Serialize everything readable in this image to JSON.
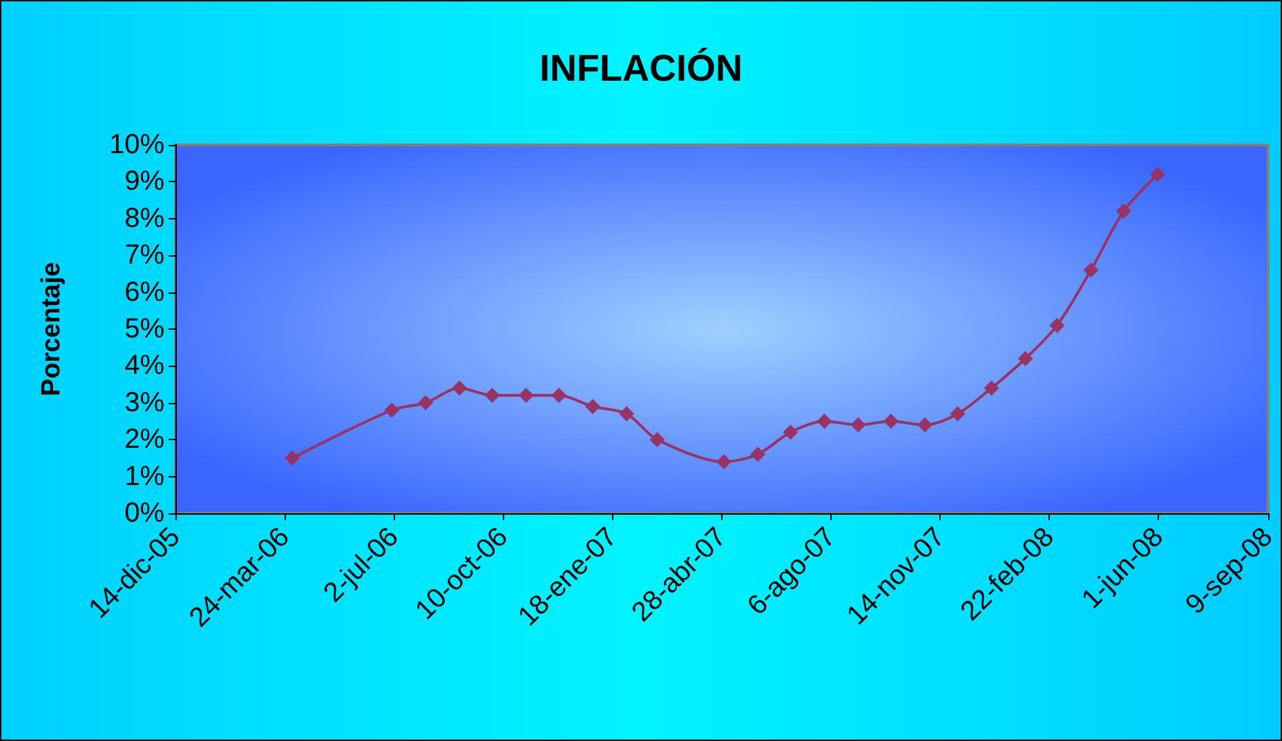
{
  "chart_data": {
    "type": "line",
    "title": "INFLACIÓN",
    "ylabel": "Porcentaje",
    "x": [
      "2006-03-31",
      "2006-06-30",
      "2006-07-31",
      "2006-08-31",
      "2006-09-30",
      "2006-10-31",
      "2006-11-30",
      "2006-12-31",
      "2007-01-31",
      "2007-02-28",
      "2007-04-30",
      "2007-05-31",
      "2007-06-30",
      "2007-07-31",
      "2007-08-31",
      "2007-09-30",
      "2007-10-31",
      "2007-11-30",
      "2007-12-31",
      "2008-01-31",
      "2008-02-29",
      "2008-03-31",
      "2008-04-30",
      "2008-05-31"
    ],
    "series": [
      {
        "color": "#993366",
        "values": [
          1.5,
          2.8,
          3.0,
          3.4,
          3.2,
          3.2,
          3.2,
          2.9,
          2.7,
          2.0,
          1.4,
          1.6,
          2.2,
          2.5,
          2.4,
          2.5,
          2.4,
          2.7,
          3.4,
          4.2,
          5.1,
          6.6,
          8.2,
          9.2
        ]
      }
    ],
    "xlim": [
      "2005-12-14",
      "2008-09-09"
    ],
    "xticks": [
      {
        "value": "2005-12-14",
        "label": "14-dic-05"
      },
      {
        "value": "2006-03-24",
        "label": "24-mar-06"
      },
      {
        "value": "2006-07-02",
        "label": "2-jul-06"
      },
      {
        "value": "2006-10-10",
        "label": "10-oct-06"
      },
      {
        "value": "2007-01-18",
        "label": "18-ene-07"
      },
      {
        "value": "2007-04-28",
        "label": "28-abr-07"
      },
      {
        "value": "2007-08-06",
        "label": "6-ago-07"
      },
      {
        "value": "2007-11-14",
        "label": "14-nov-07"
      },
      {
        "value": "2008-02-22",
        "label": "22-feb-08"
      },
      {
        "value": "2008-06-01",
        "label": "1-jun-08"
      },
      {
        "value": "2008-09-09",
        "label": "9-sep-08"
      }
    ],
    "ylim": [
      0,
      10
    ],
    "yticks": [
      {
        "value": 0,
        "label": "0%"
      },
      {
        "value": 1,
        "label": "1%"
      },
      {
        "value": 2,
        "label": "2%"
      },
      {
        "value": 3,
        "label": "3%"
      },
      {
        "value": 4,
        "label": "4%"
      },
      {
        "value": 5,
        "label": "5%"
      },
      {
        "value": 6,
        "label": "6%"
      },
      {
        "value": 7,
        "label": "7%"
      },
      {
        "value": 8,
        "label": "8%"
      },
      {
        "value": 9,
        "label": "9%"
      },
      {
        "value": 10,
        "label": "10%"
      }
    ],
    "grid": false,
    "marker": "diamond",
    "line_style": "solid"
  }
}
